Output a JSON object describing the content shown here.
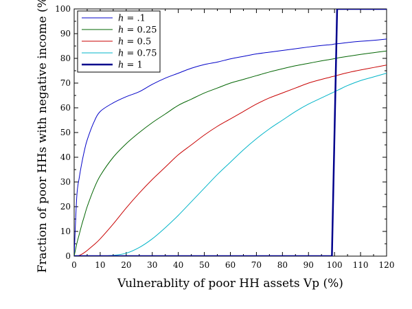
{
  "chart_data": {
    "type": "line",
    "xlabel": "Vulnerablity of poor HH assets Vp (%)",
    "ylabel": "Fraction of poor HHs with negative income (%)",
    "xlim": [
      0,
      120
    ],
    "ylim": [
      0,
      100
    ],
    "x_ticks": [
      0,
      10,
      20,
      30,
      40,
      50,
      60,
      70,
      80,
      90,
      100,
      110,
      120
    ],
    "y_ticks": [
      0,
      10,
      20,
      30,
      40,
      50,
      60,
      70,
      80,
      90,
      100
    ],
    "grid": false,
    "legend_position": "top-left",
    "x": [
      0,
      1,
      2,
      3,
      4,
      5,
      7.5,
      10,
      15,
      20,
      25,
      30,
      35,
      40,
      45,
      50,
      55,
      60,
      65,
      70,
      75,
      80,
      85,
      90,
      95,
      98,
      99,
      100,
      101,
      102,
      105,
      110,
      115,
      120
    ],
    "series": [
      {
        "name": "h = .1",
        "legend_var": "h",
        "legend_value": ".1",
        "color": "#0000c8",
        "width": 1,
        "values": [
          0,
          24,
          32,
          38,
          43,
          47,
          54,
          58.5,
          62,
          64.5,
          66.5,
          69.5,
          72,
          74,
          76,
          77.5,
          78.5,
          79.8,
          80.8,
          81.8,
          82.5,
          83.2,
          83.9,
          84.6,
          85.2,
          85.5,
          85.6,
          85.8,
          85.9,
          86,
          86.4,
          86.9,
          87.3,
          87.8
        ]
      },
      {
        "name": "h = 0.25",
        "legend_var": "h",
        "legend_value": "0.25",
        "color": "#006400",
        "width": 1,
        "values": [
          0,
          5,
          9,
          13,
          16.5,
          20,
          27,
          32.5,
          40,
          45.5,
          50,
          54,
          57.5,
          61,
          63.5,
          66,
          68,
          70,
          71.5,
          73,
          74.5,
          75.8,
          77,
          78,
          79,
          79.5,
          79.7,
          79.9,
          80.1,
          80.3,
          80.8,
          81.6,
          82.3,
          83
        ]
      },
      {
        "name": "h = 0.5",
        "legend_var": "h",
        "legend_value": "0.5",
        "color": "#c80000",
        "width": 1,
        "values": [
          0,
          0,
          0.3,
          0.8,
          1.5,
          2.3,
          4.5,
          7,
          13,
          19.5,
          25.5,
          31,
          36,
          41,
          45,
          49,
          52.5,
          55.5,
          58.5,
          61.5,
          64,
          66,
          68,
          70,
          71.5,
          72.3,
          72.6,
          72.8,
          73.1,
          73.4,
          74.2,
          75.3,
          76.3,
          77.3
        ]
      },
      {
        "name": "h = 0.75",
        "legend_var": "h",
        "legend_value": "0.75",
        "color": "#00b4c8",
        "width": 1,
        "values": [
          0,
          0,
          0,
          0,
          0,
          0,
          0,
          0,
          0.3,
          1.2,
          3.5,
          7,
          11.5,
          16.5,
          22,
          27.5,
          33,
          38,
          43,
          47.5,
          51.5,
          55,
          58.5,
          61.5,
          64,
          65.5,
          66,
          66.5,
          67,
          67.5,
          69,
          71,
          72.5,
          74
        ]
      },
      {
        "name": "h = 1",
        "legend_var": "h",
        "legend_value": "1",
        "color": "#00008c",
        "width": 2.5,
        "points": [
          [
            0,
            0
          ],
          [
            99,
            0
          ],
          [
            101,
            100
          ],
          [
            120,
            100
          ]
        ]
      }
    ]
  }
}
